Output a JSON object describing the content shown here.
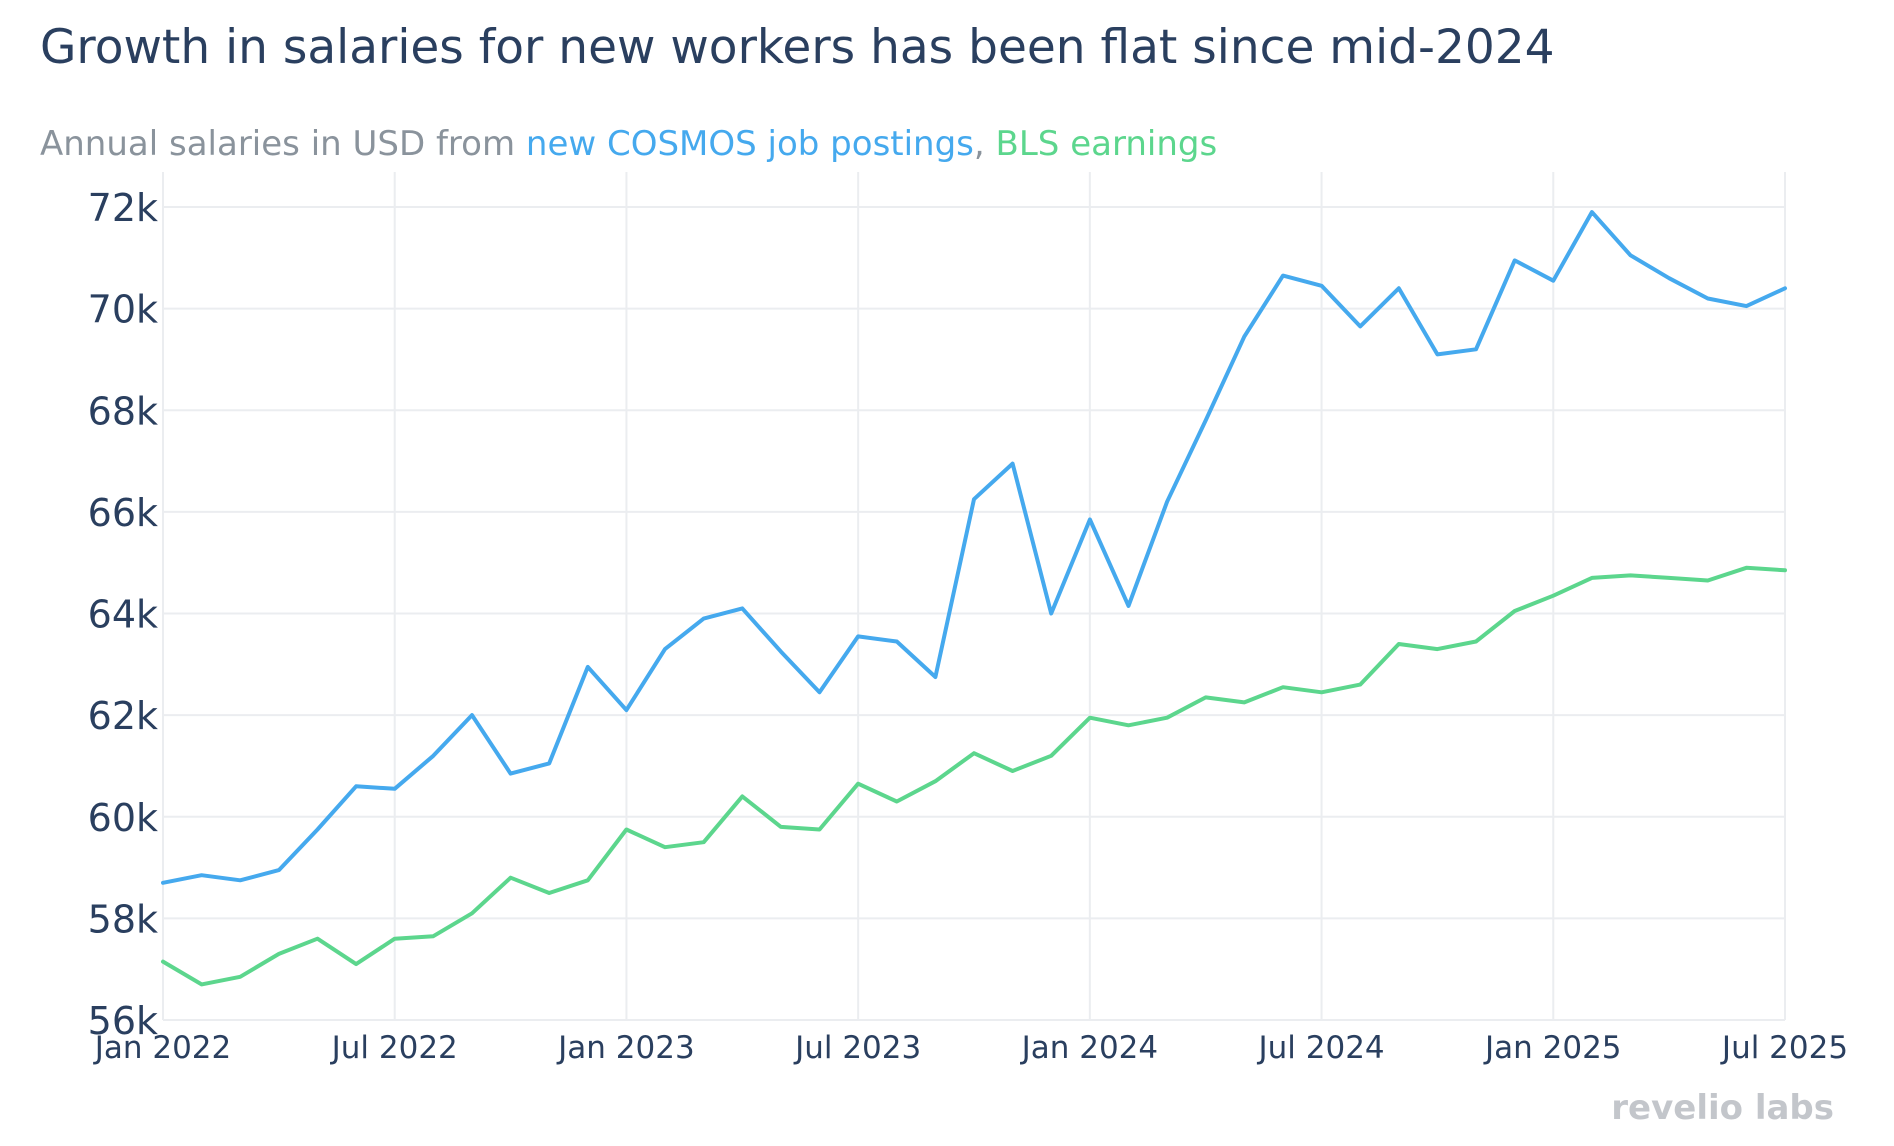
{
  "title": "Growth in salaries for new workers has been flat since mid-2024",
  "subtitle": {
    "prefix": "Annual salaries in USD from ",
    "series1": "new COSMOS job postings",
    "separator": ", ",
    "series2": "BLS earnings"
  },
  "brand": "revelio labs",
  "colors": {
    "title": "#2a3f5f",
    "subtitle": "#8a939c",
    "cosmos": "#45a9ee",
    "bls": "#5cd68d",
    "grid": "#ebedf0",
    "axis_text": "#2a3f5f",
    "brand": "#c3c6cb"
  },
  "chart_data": {
    "type": "line",
    "title": "Growth in salaries for new workers has been flat since mid-2024",
    "subtitle": "Annual salaries in USD from new COSMOS job postings, BLS earnings",
    "x": [
      "2022-01",
      "2022-02",
      "2022-03",
      "2022-04",
      "2022-05",
      "2022-06",
      "2022-07",
      "2022-08",
      "2022-09",
      "2022-10",
      "2022-11",
      "2022-12",
      "2023-01",
      "2023-02",
      "2023-03",
      "2023-04",
      "2023-05",
      "2023-06",
      "2023-07",
      "2023-08",
      "2023-09",
      "2023-10",
      "2023-11",
      "2023-12",
      "2024-01",
      "2024-02",
      "2024-03",
      "2024-04",
      "2024-05",
      "2024-06",
      "2024-07",
      "2024-08",
      "2024-09",
      "2024-10",
      "2024-11",
      "2024-12",
      "2025-01",
      "2025-02",
      "2025-03",
      "2025-04",
      "2025-05",
      "2025-06",
      "2025-07"
    ],
    "series": [
      {
        "name": "new COSMOS job postings",
        "color": "#45a9ee",
        "values": [
          58700,
          58850,
          58750,
          58950,
          59750,
          60600,
          60550,
          61200,
          62000,
          60850,
          61050,
          62950,
          62100,
          63300,
          63900,
          64100,
          63250,
          62450,
          63550,
          63450,
          62750,
          66250,
          66950,
          64000,
          65850,
          64150,
          66200,
          67800,
          69450,
          70650,
          70450,
          69650,
          70400,
          69100,
          69200,
          70950,
          70550,
          71900,
          71050,
          70600,
          70200,
          70050,
          70400
        ]
      },
      {
        "name": "BLS earnings",
        "color": "#5cd68d",
        "values": [
          57150,
          56700,
          56850,
          57300,
          57600,
          57100,
          57600,
          57650,
          58100,
          58800,
          58500,
          58750,
          59750,
          59400,
          59500,
          60400,
          59800,
          59750,
          60650,
          60300,
          60700,
          61250,
          60900,
          61200,
          61950,
          61800,
          61950,
          62350,
          62250,
          62550,
          62450,
          62600,
          63400,
          63300,
          63450,
          64050,
          64350,
          64700,
          64750,
          64700,
          64650,
          64900,
          64850
        ]
      }
    ],
    "x_ticks": [
      "Jan 2022",
      "Jul 2022",
      "Jan 2023",
      "Jul 2023",
      "Jan 2024",
      "Jul 2024",
      "Jan 2025",
      "Jul 2025"
    ],
    "x_tick_values": [
      "2022-01",
      "2022-07",
      "2023-01",
      "2023-07",
      "2024-01",
      "2024-07",
      "2025-01",
      "2025-07"
    ],
    "y_ticks": [
      "56k",
      "58k",
      "60k",
      "62k",
      "64k",
      "66k",
      "68k",
      "70k",
      "72k"
    ],
    "y_tick_values": [
      56000,
      58000,
      60000,
      62000,
      64000,
      66000,
      68000,
      70000,
      72000
    ],
    "ylim": [
      56000,
      72650
    ],
    "xlim": [
      "2022-01",
      "2025-07"
    ],
    "grid": true,
    "legend": "none (series named in subtitle)"
  }
}
